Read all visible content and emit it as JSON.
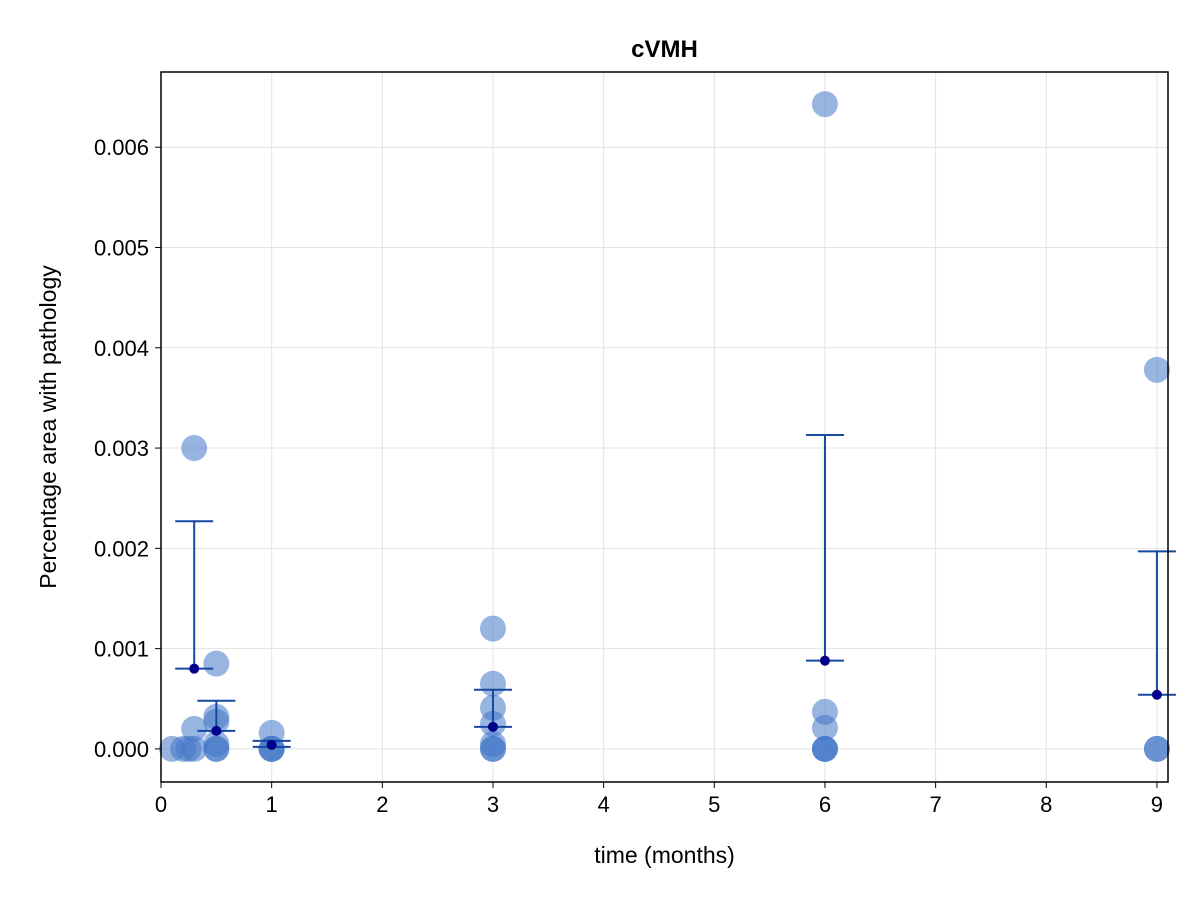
{
  "chart_data": {
    "type": "scatter",
    "title": "cVMH",
    "xlabel": "time (months)",
    "ylabel": "Percentage area with pathology",
    "xlim": [
      0,
      9.1
    ],
    "ylim": [
      -0.00033,
      0.00675
    ],
    "xticks": [
      0,
      1,
      2,
      3,
      4,
      5,
      6,
      7,
      8,
      9
    ],
    "xtick_labels": [
      "0",
      "1",
      "2",
      "3",
      "4",
      "5",
      "6",
      "7",
      "8",
      "9"
    ],
    "yticks": [
      0,
      0.001,
      0.002,
      0.003,
      0.004,
      0.005,
      0.006
    ],
    "ytick_labels": [
      "0.000",
      "0.001",
      "0.002",
      "0.003",
      "0.004",
      "0.005",
      "0.006"
    ],
    "grid": true,
    "colors": {
      "points": "#4477c8",
      "errorbar": "#1449a0",
      "mean": "#00008b",
      "grid": "#e3e3e3",
      "frame": "#000000"
    },
    "series": [
      {
        "points": [
          {
            "x": 0.1,
            "y": 0
          },
          {
            "x": 0.2,
            "y": 0
          },
          {
            "x": 0.25,
            "y": 0
          },
          {
            "x": 0.3,
            "y": 0.003
          },
          {
            "x": 0.3,
            "y": 0.0002
          },
          {
            "x": 0.3,
            "y": 0
          },
          {
            "x": 0.5,
            "y": 0.00085
          },
          {
            "x": 0.5,
            "y": 0.00032
          },
          {
            "x": 0.5,
            "y": 0.00027
          },
          {
            "x": 0.5,
            "y": 5e-05
          },
          {
            "x": 0.5,
            "y": 0
          },
          {
            "x": 0.5,
            "y": 0
          },
          {
            "x": 1,
            "y": 0.00016
          },
          {
            "x": 1,
            "y": 0
          },
          {
            "x": 1,
            "y": 0
          },
          {
            "x": 1,
            "y": 0
          },
          {
            "x": 3,
            "y": 0.0012
          },
          {
            "x": 3,
            "y": 0.00065
          },
          {
            "x": 3,
            "y": 0.00041
          },
          {
            "x": 3,
            "y": 0.00025
          },
          {
            "x": 3,
            "y": 5e-05
          },
          {
            "x": 3,
            "y": 0
          },
          {
            "x": 3,
            "y": 0
          },
          {
            "x": 6,
            "y": 0.00643
          },
          {
            "x": 6,
            "y": 0.00037
          },
          {
            "x": 6,
            "y": 0.00021
          },
          {
            "x": 6,
            "y": 0
          },
          {
            "x": 6,
            "y": 0
          },
          {
            "x": 6,
            "y": 0
          },
          {
            "x": 9,
            "y": 0.00378
          },
          {
            "x": 9,
            "y": 0
          },
          {
            "x": 9,
            "y": 0
          }
        ]
      }
    ],
    "summary": [
      {
        "x": 0.3,
        "mean": 0.0008,
        "lower": 0.0008,
        "upper": 0.00227
      },
      {
        "x": 0.5,
        "mean": 0.00018,
        "lower": 0.00018,
        "upper": 0.00048
      },
      {
        "x": 1,
        "mean": 4e-05,
        "lower": 2e-05,
        "upper": 8e-05
      },
      {
        "x": 3,
        "mean": 0.00022,
        "lower": 0.00022,
        "upper": 0.00059
      },
      {
        "x": 6,
        "mean": 0.00088,
        "lower": 0.00088,
        "upper": 0.00313
      },
      {
        "x": 9,
        "mean": 0.00054,
        "lower": 0.00054,
        "upper": 0.00197
      }
    ]
  }
}
